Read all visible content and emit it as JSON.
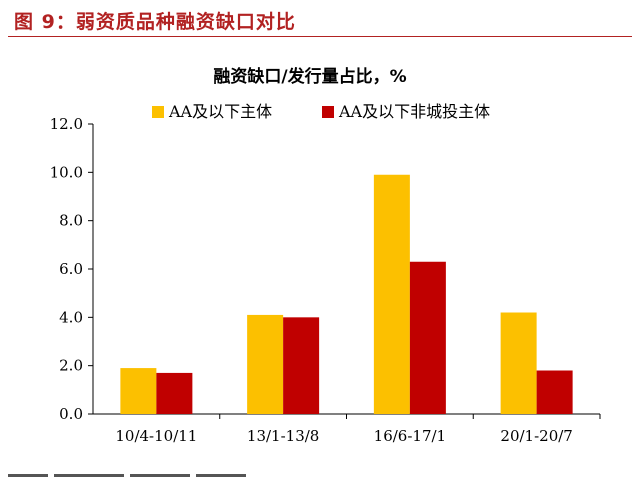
{
  "figure": {
    "title": "图 9：弱资质品种融资缺口对比"
  },
  "chart_data": {
    "type": "bar",
    "title": "融资缺口/发行量占比，%",
    "categories": [
      "10/4-10/11",
      "13/1-13/8",
      "16/6-17/1",
      "20/1-20/7"
    ],
    "series": [
      {
        "name": "AA及以下主体",
        "color": "#fcc000",
        "values": [
          1.9,
          4.1,
          9.9,
          4.2
        ]
      },
      {
        "name": "AA及以下非城投主体",
        "color": "#c00000",
        "values": [
          1.7,
          4.0,
          6.3,
          1.8
        ]
      }
    ],
    "y_ticks": [
      "0.0",
      "2.0",
      "4.0",
      "6.0",
      "8.0",
      "10.0",
      "12.0"
    ],
    "ylim": [
      0,
      12
    ],
    "legend_position": "top",
    "grid": false
  }
}
